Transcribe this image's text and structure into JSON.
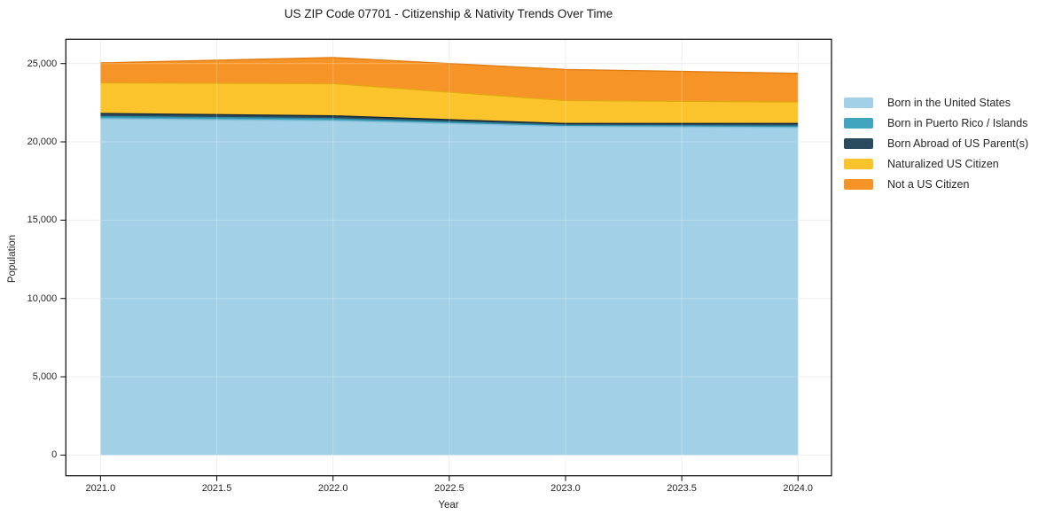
{
  "title": "US ZIP Code 07701 - Citizenship & Nativity Trends Over Time",
  "chart_data": {
    "type": "area",
    "stacked": true,
    "title": "US ZIP Code 07701 - Citizenship & Nativity Trends Over Time",
    "xlabel": "Year",
    "ylabel": "Population",
    "x": [
      2021,
      2022,
      2023,
      2024
    ],
    "series": [
      {
        "name": "Born in the United States",
        "color": "#a2d1e7",
        "edge": "#8bc0da",
        "values": [
          21470,
          21340,
          20980,
          20900
        ]
      },
      {
        "name": "Born in Puerto Rico / Islands",
        "color": "#41a5bf",
        "edge": "#2e8aa3",
        "values": [
          150,
          140,
          80,
          110
        ]
      },
      {
        "name": "Born Abroad of US Parent(s)",
        "color": "#2a4a5d",
        "edge": "#16293a",
        "values": [
          190,
          180,
          110,
          160
        ]
      },
      {
        "name": "Naturalized US Citizen",
        "color": "#fbc42d",
        "edge": "#e3a714",
        "values": [
          1960,
          2060,
          1470,
          1375
        ]
      },
      {
        "name": "Not a US Citizen",
        "color": "#f79428",
        "edge": "#e07d13",
        "values": [
          1270,
          1660,
          1980,
          1830
        ]
      }
    ],
    "totals": [
      25040,
      25380,
      24620,
      24375
    ],
    "xticks": [
      "2021.0",
      "2021.5",
      "2022.0",
      "2022.5",
      "2023.0",
      "2023.5",
      "2024.0"
    ],
    "xtick_values": [
      2021,
      2021.5,
      2022,
      2022.5,
      2023,
      2023.5,
      2024
    ],
    "yticks": [
      "0",
      "5,000",
      "10,000",
      "15,000",
      "20,000",
      "25,000"
    ],
    "ytick_values": [
      0,
      5000,
      10000,
      15000,
      20000,
      25000
    ],
    "xlim": [
      2020.851,
      2024.144
    ],
    "ylim": [
      -1320,
      26550
    ],
    "grid": true,
    "legend_position": "right-outside"
  }
}
